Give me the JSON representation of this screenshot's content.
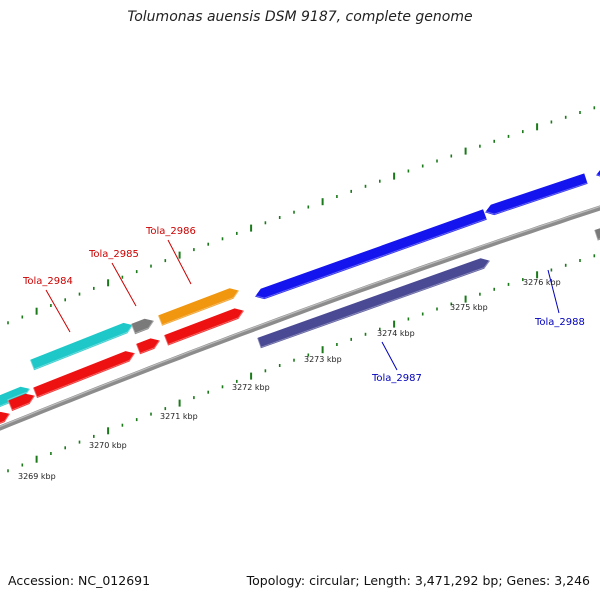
{
  "title": "Tolumonas auensis DSM 9187, complete genome",
  "accession": "Accession: NC_012691",
  "topology": "Topology: circular; Length: 3,471,292 bp; Genes: 3,246",
  "colors": {
    "backbone": "#8c8c8c",
    "ticks": "#1a7a1a",
    "cyan": "#1ec8c8",
    "gray": "#7a7a7a",
    "orange": "#f0960f",
    "red": "#ee1111",
    "blue": "#1414ee",
    "navy": "#4a4a94",
    "label_red": "#cc0000",
    "label_blue": "#0000bb"
  },
  "kbp_labels": [
    "3269 kbp",
    "3270 kbp",
    "3271 kbp",
    "3272 kbp",
    "3273 kbp",
    "3274 kbp",
    "3275 kbp",
    "3276 kbp"
  ],
  "gene_labels": [
    "Tola_2984",
    "Tola_2985",
    "Tola_2986",
    "Tola_2987",
    "Tola_2988"
  ]
}
